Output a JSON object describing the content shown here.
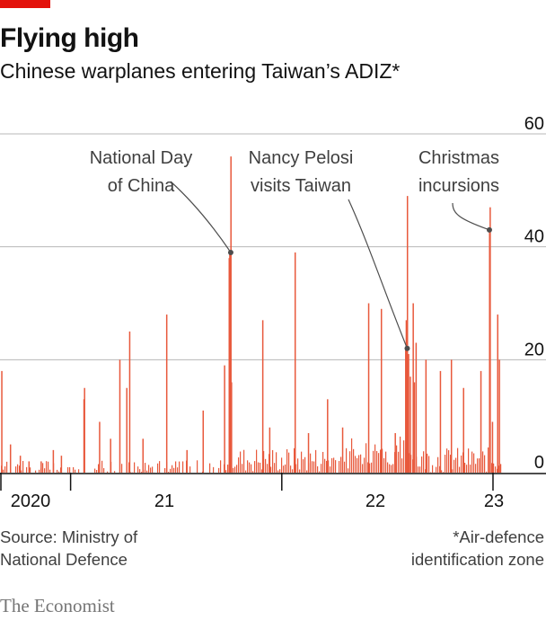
{
  "header": {
    "title": "Flying high",
    "subtitle": "Chinese warplanes entering Taiwan’s ADIZ*"
  },
  "footer": {
    "source_lines": [
      "Source: Ministry of",
      "National Defence"
    ],
    "footnote_lines": [
      "*Air-defence",
      "identification zone"
    ],
    "logo": "The Economist"
  },
  "colors": {
    "bars": "#e8593c",
    "accent": "#e3120b",
    "grid": "#b7b7b7",
    "axis": "#121212"
  },
  "chart_data": {
    "type": "bar",
    "title": "Flying high",
    "subtitle": "Chinese warplanes entering Taiwan’s ADIZ*",
    "y_axis": {
      "min": 0,
      "max": 60,
      "ticks": [
        0,
        20,
        40,
        60
      ],
      "position": "right",
      "grid": true
    },
    "x_axis": {
      "start": "2020-09-01",
      "end": "2023-01-15",
      "tick_labels": [
        "2020",
        "21",
        "22",
        "23"
      ],
      "year_boundaries": [
        "2021-01-01",
        "2022-01-01",
        "2023-01-01"
      ]
    },
    "series": [
      {
        "values_note_free": true,
        "points": [
          [
            "2020-09-03",
            18
          ],
          [
            "2020-09-18",
            5
          ],
          [
            "2020-10-05",
            3
          ],
          [
            "2020-10-20",
            2
          ],
          [
            "2020-11-10",
            2
          ],
          [
            "2020-12-01",
            4
          ],
          [
            "2020-12-15",
            3
          ],
          [
            "2021-01-23",
            13
          ],
          [
            "2021-01-24",
            15
          ],
          [
            "2021-02-19",
            9
          ],
          [
            "2021-03-10",
            6
          ],
          [
            "2021-03-26",
            20
          ],
          [
            "2021-04-07",
            15
          ],
          [
            "2021-04-12",
            25
          ],
          [
            "2021-05-05",
            6
          ],
          [
            "2021-06-15",
            28
          ],
          [
            "2021-07-20",
            4
          ],
          [
            "2021-08-17",
            11
          ],
          [
            "2021-09-23",
            19
          ],
          [
            "2021-10-01",
            38
          ],
          [
            "2021-10-02",
            39
          ],
          [
            "2021-10-04",
            56
          ],
          [
            "2021-10-05",
            16
          ],
          [
            "2021-11-28",
            27
          ],
          [
            "2021-12-10",
            8
          ],
          [
            "2022-01-23",
            39
          ],
          [
            "2022-02-15",
            7
          ],
          [
            "2022-03-20",
            13
          ],
          [
            "2022-04-15",
            8
          ],
          [
            "2022-05-30",
            30
          ],
          [
            "2022-06-21",
            29
          ],
          [
            "2022-07-15",
            7
          ],
          [
            "2022-08-02",
            22
          ],
          [
            "2022-08-03",
            27
          ],
          [
            "2022-08-04",
            22
          ],
          [
            "2022-08-05",
            49
          ],
          [
            "2022-08-06",
            20
          ],
          [
            "2022-08-07",
            21
          ],
          [
            "2022-08-10",
            17
          ],
          [
            "2022-08-15",
            30
          ],
          [
            "2022-08-17",
            16
          ],
          [
            "2022-08-20",
            23
          ],
          [
            "2022-09-06",
            20
          ],
          [
            "2022-10-01",
            18
          ],
          [
            "2022-10-20",
            20
          ],
          [
            "2022-11-10",
            15
          ],
          [
            "2022-12-10",
            18
          ],
          [
            "2022-12-25",
            43
          ],
          [
            "2022-12-26",
            47
          ],
          [
            "2022-12-30",
            9
          ],
          [
            "2023-01-08",
            28
          ],
          [
            "2023-01-11",
            20
          ]
        ]
      }
    ],
    "annotations": [
      {
        "lines": [
          "National Day",
          "of China"
        ],
        "date": "2021-10-04",
        "value": 39
      },
      {
        "lines": [
          "Nancy Pelosi",
          "visits Taiwan"
        ],
        "date": "2022-08-05",
        "value": 22
      },
      {
        "lines": [
          "Christmas",
          "incursions"
        ],
        "date": "2022-12-25",
        "value": 43
      }
    ]
  }
}
